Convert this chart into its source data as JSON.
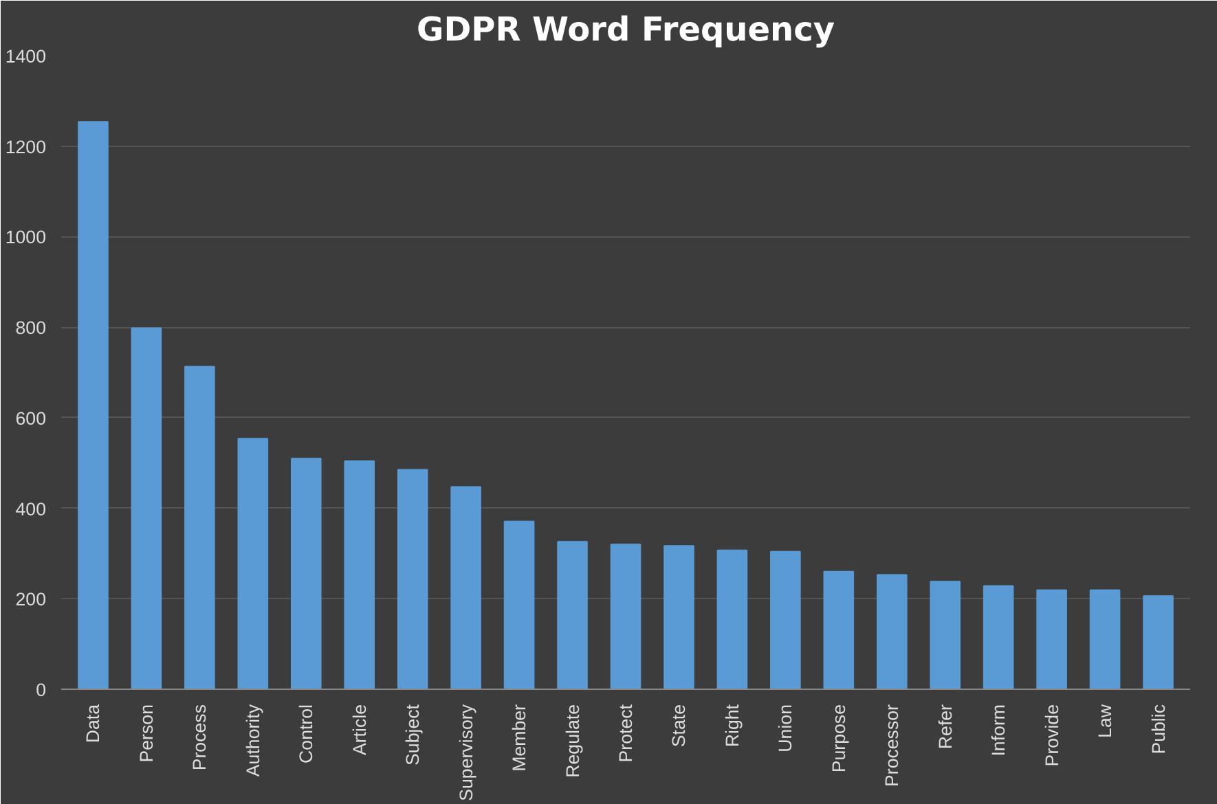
{
  "chart_data": {
    "type": "bar",
    "title": "GDPR Word Frequency",
    "categories": [
      "Data",
      "Person",
      "Process",
      "Authority",
      "Control",
      "Article",
      "Subject",
      "Supervisory",
      "Member",
      "Regulate",
      "Protect",
      "State",
      "Right",
      "Union",
      "Purpose",
      "Processor",
      "Refer",
      "Inform",
      "Provide",
      "Law",
      "Public"
    ],
    "values": [
      1254,
      798,
      713,
      554,
      510,
      504,
      485,
      447,
      371,
      326,
      320,
      317,
      307,
      304,
      260,
      253,
      238,
      228,
      219,
      219,
      206
    ],
    "color": "#5b9bd5",
    "ylim": [
      0,
      1400
    ],
    "yticks": [
      0,
      200,
      400,
      600,
      800,
      1000,
      1200,
      1400
    ],
    "grid": "y"
  }
}
